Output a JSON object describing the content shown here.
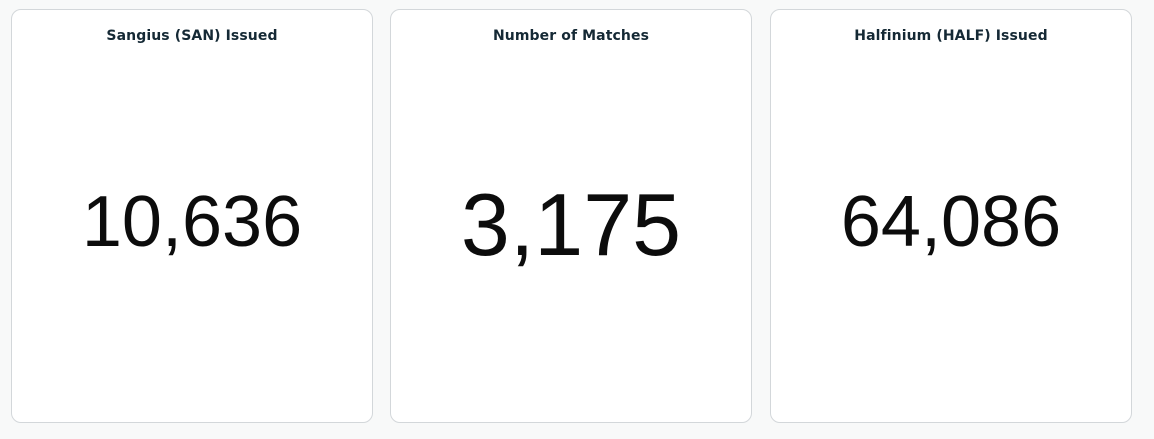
{
  "cards": [
    {
      "title": "Sangius (SAN) Issued",
      "value": "10,636"
    },
    {
      "title": "Number of Matches",
      "value": "3,175"
    },
    {
      "title": "Halfinium (HALF) Issued",
      "value": "64,086"
    }
  ]
}
